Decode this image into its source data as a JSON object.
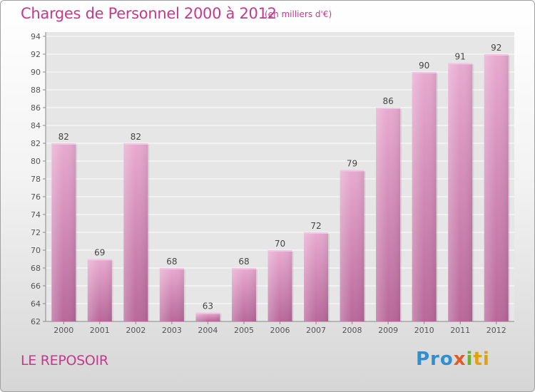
{
  "header": {
    "title": "Charges de Personnel 2000 à 2012",
    "subtitle": "(en milliers d'€)"
  },
  "footer": {
    "commune": "LE REPOSOIR",
    "logo": {
      "p1": "Pro",
      "p2": "x",
      "p3": "i",
      "p4": "ti"
    }
  },
  "colors": {
    "bar": "#d690ba",
    "title": "#c33a8a",
    "axis_text": "#555555",
    "grid": "#ffffff"
  },
  "chart_data": {
    "type": "bar",
    "title": "Charges de Personnel 2000 à 2012",
    "subtitle": "(en milliers d'€)",
    "xlabel": "",
    "ylabel": "",
    "categories": [
      "2000",
      "2001",
      "2002",
      "2003",
      "2004",
      "2005",
      "2006",
      "2007",
      "2008",
      "2009",
      "2010",
      "2011",
      "2012"
    ],
    "values": [
      82,
      69,
      82,
      68,
      63,
      68,
      70,
      72,
      79,
      86,
      90,
      91,
      92
    ],
    "ylim": [
      62,
      94
    ],
    "yticks": [
      62,
      64,
      66,
      68,
      70,
      72,
      74,
      76,
      78,
      80,
      82,
      84,
      86,
      88,
      90,
      92,
      94
    ],
    "grid": true,
    "legend": "none"
  }
}
